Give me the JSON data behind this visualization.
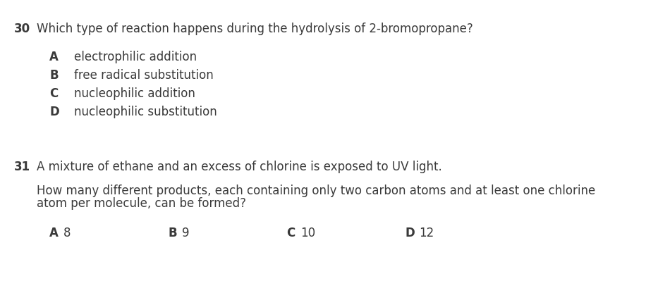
{
  "background_color": "#ffffff",
  "q30_number": "30",
  "q30_question": "Which type of reaction happens during the hydrolysis of 2-bromopropane?",
  "q30_options": [
    {
      "letter": "A",
      "text": "electrophilic addition"
    },
    {
      "letter": "B",
      "text": "free radical substitution"
    },
    {
      "letter": "C",
      "text": "nucleophilic addition"
    },
    {
      "letter": "D",
      "text": "nucleophilic substitution"
    }
  ],
  "q31_number": "31",
  "q31_line1": "A mixture of ethane and an excess of chlorine is exposed to UV light.",
  "q31_line2": "How many different products, each containing only two carbon atoms and at least one chlorine",
  "q31_line3": "atom per molecule, can be formed?",
  "q31_options": [
    {
      "letter": "A",
      "value": "8"
    },
    {
      "letter": "B",
      "value": "9"
    },
    {
      "letter": "C",
      "value": "10"
    },
    {
      "letter": "D",
      "value": "12"
    }
  ],
  "font_color": "#3a3a3a",
  "font_family": "DejaVu Sans",
  "question_fontsize": 12.0,
  "option_fontsize": 12.0
}
